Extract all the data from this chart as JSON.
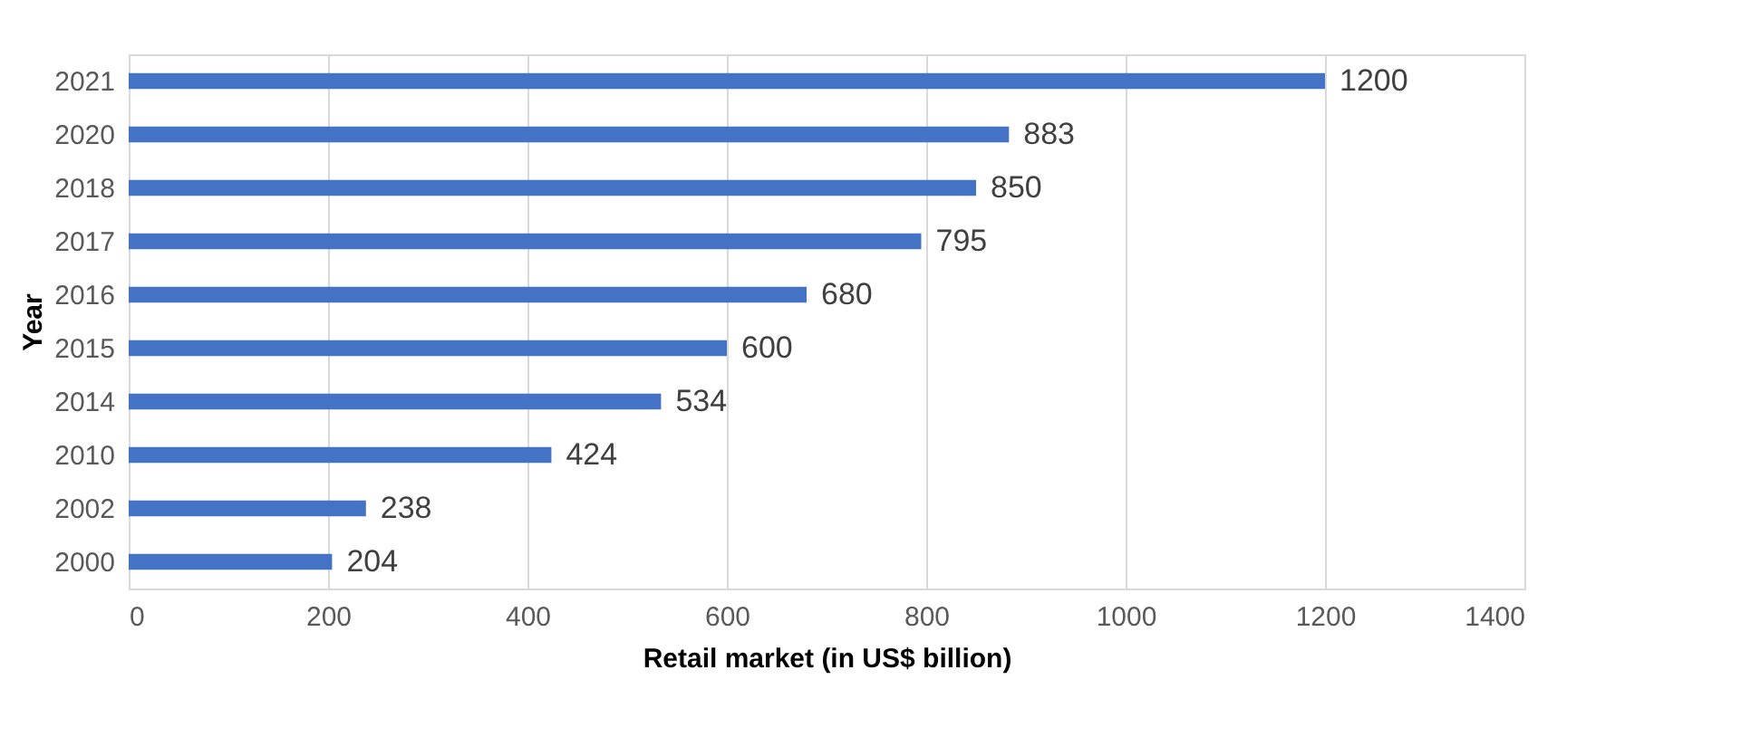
{
  "chart_data": {
    "type": "bar",
    "orientation": "horizontal",
    "xlabel": "Retail market (in US$ billion)",
    "ylabel": "Year",
    "categories": [
      "2021",
      "2020",
      "2018",
      "2017",
      "2016",
      "2015",
      "2014",
      "2010",
      "2002",
      "2000"
    ],
    "values": [
      1200,
      883,
      850,
      795,
      680,
      600,
      534,
      424,
      238,
      204
    ],
    "color": "#4472c4",
    "xlim": [
      0,
      1400
    ],
    "xticks": [
      0,
      200,
      400,
      600,
      800,
      1000,
      1200,
      1400
    ],
    "grid": "x",
    "data_labels": true
  }
}
